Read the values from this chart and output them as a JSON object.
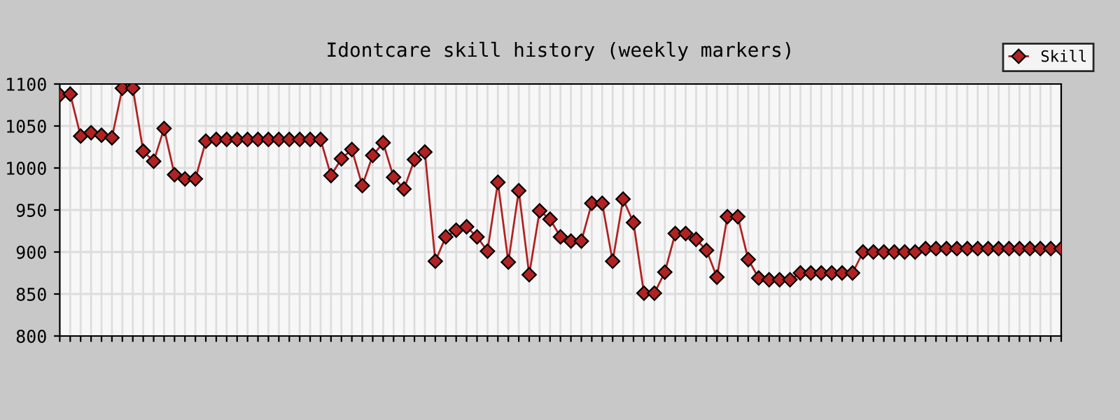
{
  "chart_data": {
    "type": "line",
    "title": "Idontcare skill history (weekly markers)",
    "categories": [
      null,
      null,
      null,
      null,
      null,
      null,
      null,
      null,
      null,
      null,
      null,
      null,
      null,
      null,
      null,
      null,
      null,
      null,
      null,
      null,
      null,
      null,
      null,
      null,
      null,
      null,
      null,
      null,
      null,
      null,
      null,
      null,
      null,
      null,
      null,
      null,
      null,
      null,
      null,
      null,
      null,
      null,
      null,
      null,
      null,
      null,
      null,
      null,
      null,
      null,
      null,
      null,
      null,
      null,
      null,
      null,
      null,
      null,
      null,
      null,
      null,
      null,
      null,
      null,
      null,
      null,
      null,
      null,
      null,
      null,
      null,
      null,
      null,
      null,
      null,
      null,
      null,
      null,
      null,
      null,
      null,
      null,
      null,
      null,
      null,
      null,
      null,
      null,
      null,
      null,
      null,
      null,
      null,
      null,
      null,
      null,
      null
    ],
    "series": [
      {
        "name": "Skill",
        "color": "#b22222",
        "values": [
          1087,
          1088,
          1038,
          1042,
          1039,
          1036,
          1095,
          1095,
          1020,
          1008,
          1047,
          992,
          987,
          987,
          1032,
          1034,
          1034,
          1034,
          1034,
          1034,
          1034,
          1034,
          1034,
          1034,
          1034,
          1034,
          991,
          1011,
          1022,
          979,
          1015,
          1030,
          989,
          975,
          1010,
          1019,
          889,
          918,
          926,
          930,
          918,
          901,
          983,
          888,
          973,
          873,
          949,
          939,
          918,
          913,
          913,
          958,
          958,
          889,
          963,
          935,
          851,
          851,
          876,
          922,
          922,
          915,
          902,
          870,
          942,
          942,
          891,
          869,
          867,
          867,
          867,
          875,
          875,
          875,
          875,
          875,
          875,
          900,
          900,
          900,
          900,
          900,
          900,
          904,
          904,
          904,
          904,
          904,
          904,
          904,
          904,
          904,
          904,
          904,
          904,
          904,
          904
        ]
      }
    ],
    "ylim": [
      800,
      1100
    ],
    "yticks": [
      800,
      850,
      900,
      950,
      1000,
      1050,
      1100
    ],
    "grid": true,
    "legend": "top right",
    "marker": "diamond",
    "line_style": "solid"
  }
}
